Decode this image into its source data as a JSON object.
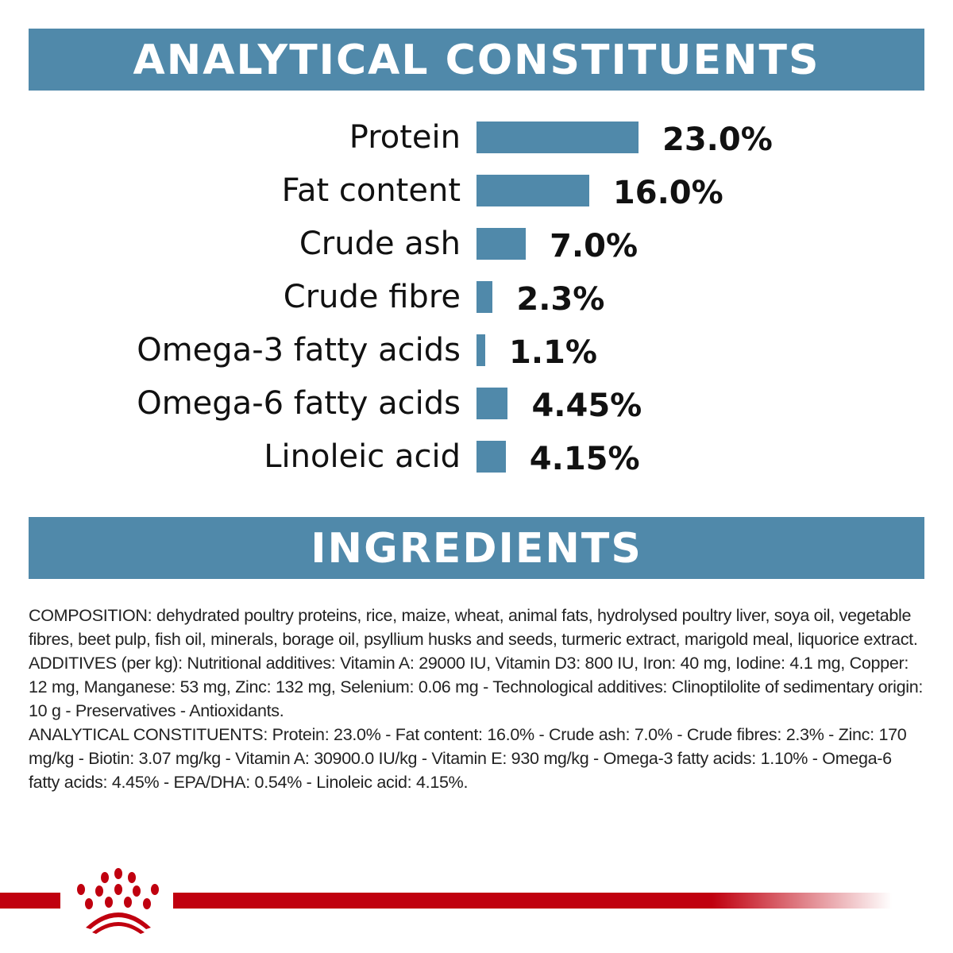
{
  "header": {
    "analytical_title": "ANALYTICAL CONSTITUENTS",
    "ingredients_title": "INGREDIENTS"
  },
  "chart_data": {
    "type": "bar",
    "orientation": "horizontal",
    "categories": [
      "Protein",
      "Fat content",
      "Crude ash",
      "Crude fibre",
      "Omega-3 fatty acids",
      "Omega-6 fatty acids",
      "Linoleic acid"
    ],
    "values": [
      23.0,
      16.0,
      7.0,
      2.3,
      1.1,
      4.45,
      4.15
    ],
    "value_labels": [
      "23.0%",
      "16.0%",
      "7.0%",
      "2.3%",
      "1.1%",
      "4.45%",
      "4.15%"
    ],
    "unit": "%",
    "bar_color": "#5089aa",
    "grid": false
  },
  "ingredients": {
    "composition": "COMPOSITION: dehydrated poultry proteins, rice, maize, wheat, animal fats, hydrolysed poultry liver, soya oil, vegetable fibres, beet pulp, fish oil, minerals, borage oil, psyllium husks and seeds, turmeric extract, marigold meal, liquorice extract.",
    "additives": "ADDITIVES (per kg): Nutritional additives: Vitamin A: 29000 IU, Vitamin D3: 800 IU, Iron: 40 mg, Iodine: 4.1 mg, Copper: 12 mg, Manganese: 53 mg, Zinc: 132 mg, Selenium: 0.06 mg - Technological additives: Clinoptilolite of sedimentary origin: 10 g - Preservatives - Antioxidants.",
    "analytical": "ANALYTICAL CONSTITUENTS: Protein: 23.0% - Fat content: 16.0% - Crude ash: 7.0% - Crude fibres: 2.3% - Zinc: 170 mg/kg - Biotin: 3.07 mg/kg - Vitamin A: 30900.0 IU/kg - Vitamin E: 930 mg/kg - Omega-3 fatty acids: 1.10% - Omega-6 fatty acids: 4.45% - EPA/DHA: 0.54% - Linoleic acid: 4.15%."
  },
  "footer": {
    "logo_icon": "royal-canin-crown-icon",
    "brand_color": "#c0000f"
  }
}
